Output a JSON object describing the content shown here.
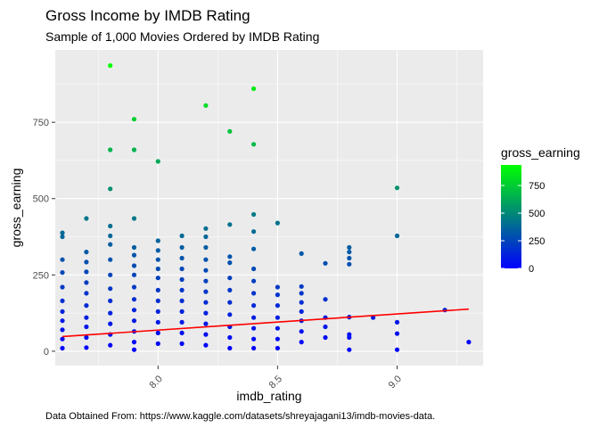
{
  "chart_data": {
    "type": "scatter",
    "title": "Gross Income by IMDB Rating",
    "subtitle": "Sample of 1,000 Movies Ordered by IMDB Rating",
    "xlabel": "imdb_rating",
    "ylabel": "gross_earning",
    "caption": "Data Obtained From: https://www.kaggle.com/datasets/shreyajagani13/imdb-movies-data.",
    "xlim": [
      7.57,
      9.36
    ],
    "ylim": [
      -47,
      987
    ],
    "x_ticks": [
      8.0,
      8.5,
      9.0
    ],
    "x_tick_labels": [
      "8.0",
      "8.5",
      "9.0"
    ],
    "y_ticks": [
      0,
      250,
      500,
      750
    ],
    "y_tick_labels": [
      "0",
      "250",
      "500",
      "750"
    ],
    "grid": true,
    "legend": {
      "title": "gross_earning",
      "placement": "right",
      "ticks": [
        0,
        250,
        500,
        750
      ],
      "tick_labels": [
        "0",
        "250",
        "500",
        "750"
      ],
      "range": [
        0,
        936
      ]
    },
    "colors": {
      "low": "#0000ff",
      "high": "#00ff00",
      "trend": "#ff0000",
      "panel": "#ebebeb"
    },
    "trend_line": {
      "x": [
        7.6,
        9.3
      ],
      "y": [
        48,
        138
      ]
    },
    "series": [
      {
        "points": [
          [
            7.6,
            388
          ],
          [
            7.6,
            375
          ],
          [
            7.6,
            300
          ],
          [
            7.6,
            258
          ],
          [
            7.6,
            210
          ],
          [
            7.6,
            165
          ],
          [
            7.6,
            130
          ],
          [
            7.6,
            100
          ],
          [
            7.6,
            70
          ],
          [
            7.6,
            40
          ],
          [
            7.6,
            10
          ],
          [
            7.7,
            435
          ],
          [
            7.7,
            325
          ],
          [
            7.7,
            292
          ],
          [
            7.7,
            260
          ],
          [
            7.7,
            225
          ],
          [
            7.7,
            190
          ],
          [
            7.7,
            150
          ],
          [
            7.7,
            110
          ],
          [
            7.7,
            80
          ],
          [
            7.7,
            45
          ],
          [
            7.7,
            12
          ],
          [
            7.8,
            936
          ],
          [
            7.8,
            660
          ],
          [
            7.8,
            532
          ],
          [
            7.8,
            410
          ],
          [
            7.8,
            378
          ],
          [
            7.8,
            350
          ],
          [
            7.8,
            300
          ],
          [
            7.8,
            250
          ],
          [
            7.8,
            205
          ],
          [
            7.8,
            165
          ],
          [
            7.8,
            125
          ],
          [
            7.8,
            90
          ],
          [
            7.8,
            55
          ],
          [
            7.8,
            20
          ],
          [
            7.9,
            760
          ],
          [
            7.9,
            660
          ],
          [
            7.9,
            435
          ],
          [
            7.9,
            340
          ],
          [
            7.9,
            315
          ],
          [
            7.9,
            280
          ],
          [
            7.9,
            250
          ],
          [
            7.9,
            210
          ],
          [
            7.9,
            170
          ],
          [
            7.9,
            135
          ],
          [
            7.9,
            100
          ],
          [
            7.9,
            65
          ],
          [
            7.9,
            30
          ],
          [
            7.9,
            5
          ],
          [
            8.0,
            622
          ],
          [
            8.0,
            362
          ],
          [
            8.0,
            330
          ],
          [
            8.0,
            300
          ],
          [
            8.0,
            270
          ],
          [
            8.0,
            240
          ],
          [
            8.0,
            200
          ],
          [
            8.0,
            165
          ],
          [
            8.0,
            130
          ],
          [
            8.0,
            95
          ],
          [
            8.0,
            60
          ],
          [
            8.0,
            25
          ],
          [
            8.1,
            378
          ],
          [
            8.1,
            340
          ],
          [
            8.1,
            305
          ],
          [
            8.1,
            270
          ],
          [
            8.1,
            235
          ],
          [
            8.1,
            200
          ],
          [
            8.1,
            165
          ],
          [
            8.1,
            130
          ],
          [
            8.1,
            95
          ],
          [
            8.1,
            60
          ],
          [
            8.1,
            25
          ],
          [
            8.2,
            805
          ],
          [
            8.2,
            402
          ],
          [
            8.2,
            375
          ],
          [
            8.2,
            340
          ],
          [
            8.2,
            300
          ],
          [
            8.2,
            265
          ],
          [
            8.2,
            230
          ],
          [
            8.2,
            195
          ],
          [
            8.2,
            160
          ],
          [
            8.2,
            125
          ],
          [
            8.2,
            90
          ],
          [
            8.2,
            55
          ],
          [
            8.2,
            20
          ],
          [
            8.3,
            720
          ],
          [
            8.3,
            415
          ],
          [
            8.3,
            310
          ],
          [
            8.3,
            290
          ],
          [
            8.3,
            240
          ],
          [
            8.3,
            200
          ],
          [
            8.3,
            160
          ],
          [
            8.3,
            120
          ],
          [
            8.3,
            80
          ],
          [
            8.3,
            45
          ],
          [
            8.3,
            10
          ],
          [
            8.4,
            860
          ],
          [
            8.4,
            678
          ],
          [
            8.4,
            448
          ],
          [
            8.4,
            392
          ],
          [
            8.4,
            335
          ],
          [
            8.4,
            270
          ],
          [
            8.4,
            230
          ],
          [
            8.4,
            190
          ],
          [
            8.4,
            150
          ],
          [
            8.4,
            110
          ],
          [
            8.4,
            75
          ],
          [
            8.4,
            40
          ],
          [
            8.4,
            10
          ],
          [
            8.5,
            420
          ],
          [
            8.5,
            210
          ],
          [
            8.5,
            185
          ],
          [
            8.5,
            150
          ],
          [
            8.5,
            110
          ],
          [
            8.5,
            75
          ],
          [
            8.5,
            40
          ],
          [
            8.5,
            10
          ],
          [
            8.6,
            320
          ],
          [
            8.6,
            212
          ],
          [
            8.6,
            190
          ],
          [
            8.6,
            160
          ],
          [
            8.6,
            130
          ],
          [
            8.6,
            100
          ],
          [
            8.6,
            65
          ],
          [
            8.6,
            30
          ],
          [
            8.7,
            288
          ],
          [
            8.7,
            170
          ],
          [
            8.7,
            110
          ],
          [
            8.7,
            80
          ],
          [
            8.7,
            45
          ],
          [
            8.8,
            340
          ],
          [
            8.8,
            325
          ],
          [
            8.8,
            305
          ],
          [
            8.8,
            285
          ],
          [
            8.8,
            112
          ],
          [
            8.8,
            55
          ],
          [
            8.8,
            45
          ],
          [
            8.8,
            5
          ],
          [
            8.9,
            110
          ],
          [
            9.0,
            535
          ],
          [
            9.0,
            378
          ],
          [
            9.0,
            95
          ],
          [
            9.0,
            58
          ],
          [
            9.0,
            5
          ],
          [
            9.2,
            135
          ],
          [
            9.3,
            30
          ]
        ]
      }
    ]
  }
}
